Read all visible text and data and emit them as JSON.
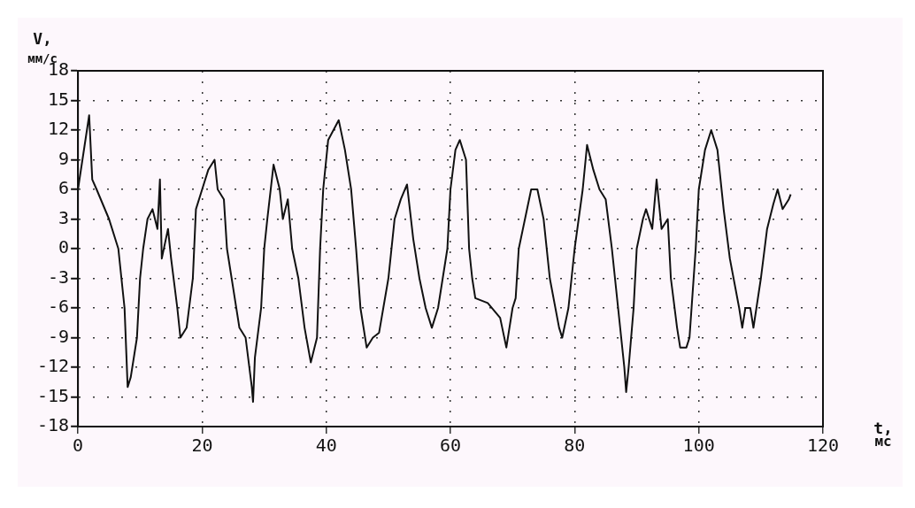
{
  "chart_data": {
    "type": "line",
    "xlabel": "t, мс",
    "ylabel": "V, мм/с",
    "x": [
      0,
      1.8,
      2.3,
      3,
      5,
      6.5,
      7,
      7.5,
      8,
      8.5,
      9.5,
      10,
      10.5,
      11.2,
      12,
      12.8,
      13.2,
      13.5,
      14.5,
      15,
      16,
      16.5,
      17.5,
      18.5,
      19,
      20,
      21,
      22,
      22.5,
      23.5,
      24,
      25,
      26,
      27,
      28,
      28.2,
      28.5,
      29.5,
      30,
      30.5,
      31.5,
      32.5,
      33,
      33.8,
      34.5,
      35.5,
      36.5,
      37.5,
      38.5,
      39,
      39.5,
      40.3,
      42,
      43,
      44,
      44.8,
      45.5,
      46.5,
      47.5,
      48.5,
      50,
      51,
      52,
      53,
      54,
      55,
      56,
      57,
      58,
      59.5,
      60,
      60.8,
      61.5,
      62.5,
      63,
      63.5,
      64,
      66,
      68,
      69,
      70,
      70.5,
      71,
      72,
      73,
      74,
      75,
      76,
      77.5,
      78,
      79,
      80,
      81.3,
      82,
      83,
      84,
      85,
      86,
      87,
      88,
      88.3,
      88.7,
      89.5,
      90,
      91,
      91.5,
      92.5,
      93.2,
      94,
      95,
      95.5,
      96.5,
      97,
      98,
      98.5,
      99.5,
      100,
      101,
      102,
      103,
      104,
      105,
      106.5,
      107,
      107.5,
      108.3,
      108.8,
      110,
      111,
      112,
      112.7,
      113.5,
      114.5,
      114.8
    ],
    "series": [
      {
        "color": "#111111",
        "values": [
          6,
          13.5,
          7,
          6,
          3,
          0,
          -3,
          -6,
          -14,
          -13,
          -9,
          -3,
          0,
          3,
          4,
          2,
          7,
          -1,
          2,
          -1,
          -6,
          -9,
          -8,
          -3,
          4,
          6,
          8,
          9,
          6,
          5,
          0,
          -4,
          -8,
          -9,
          -14,
          -15.5,
          -11,
          -6,
          0,
          3,
          8.5,
          6,
          3,
          5,
          0,
          -3,
          -8,
          -11.5,
          -9,
          0,
          6,
          11,
          13,
          10,
          6,
          0,
          -6,
          -10,
          -9,
          -8.5,
          -3,
          3,
          5,
          6.5,
          1,
          -3,
          -6,
          -8,
          -6,
          0,
          6,
          10,
          11,
          9,
          0,
          -3,
          -5,
          -5.5,
          -7,
          -10,
          -6,
          -5,
          0,
          3,
          6,
          6,
          3,
          -3,
          -8,
          -9,
          -6,
          0,
          6,
          10.5,
          8,
          6,
          5,
          0,
          -6,
          -12,
          -14.5,
          -12,
          -6,
          0,
          3,
          4,
          2,
          7,
          2,
          3,
          -3,
          -8,
          -10,
          -10,
          -9,
          0,
          6,
          10,
          12,
          10,
          4,
          -1,
          -6,
          -8,
          -6,
          -6,
          -8,
          -3,
          2,
          4.5,
          6,
          4,
          5,
          5.5
        ]
      }
    ],
    "xlim": [
      0,
      120
    ],
    "xticks": [
      0,
      20,
      40,
      60,
      80,
      100,
      120
    ],
    "ylim": [
      -18,
      18
    ],
    "yticks": [
      18,
      15,
      12,
      9,
      6,
      3,
      0,
      -3,
      -6,
      -9,
      -12,
      -15,
      -18
    ],
    "grid": true,
    "marker": "none",
    "line_style": "solid"
  }
}
